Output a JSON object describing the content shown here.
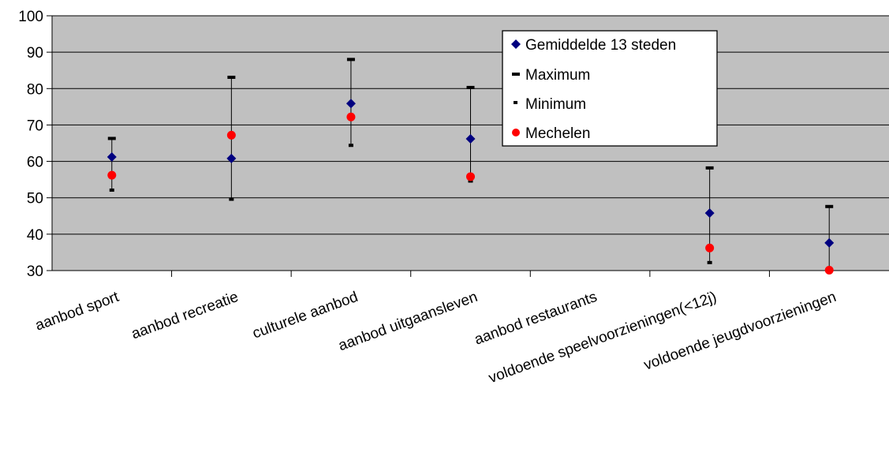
{
  "chart_data": {
    "type": "scatter",
    "categories": [
      "aanbod sport",
      "aanbod recreatie",
      "culturele aanbod",
      "aanbod uitgaansleven",
      "aanbod restaurants",
      "voldoende speelvoorzieningen(<12j)",
      "voldoende jeugdvoorzieningen"
    ],
    "ylim": [
      30,
      100
    ],
    "yticks": [
      30,
      40,
      50,
      60,
      70,
      80,
      90,
      100
    ],
    "grid": true,
    "legend_position": "top-right",
    "series": [
      {
        "name": "Gemiddelde 13 steden",
        "marker": "diamond",
        "color": "#000080",
        "values": [
          61.2,
          60.8,
          75.9,
          66.2,
          null,
          45.8,
          37.6
        ]
      },
      {
        "name": "Maximum",
        "marker": "dash",
        "color": "#000000",
        "values": [
          66.3,
          83.1,
          88.0,
          80.3,
          null,
          58.2,
          47.6
        ]
      },
      {
        "name": "Minimum",
        "marker": "dash",
        "color": "#000000",
        "values": [
          52.1,
          49.6,
          64.4,
          54.6,
          null,
          32.2,
          null
        ]
      },
      {
        "name": "Mechelen",
        "marker": "circle",
        "color": "#ff0000",
        "values": [
          56.2,
          67.2,
          72.2,
          55.8,
          null,
          36.2,
          30.1
        ]
      }
    ],
    "colors": {
      "plot_background": "#c0c0c0",
      "gridline": "#000000"
    }
  }
}
